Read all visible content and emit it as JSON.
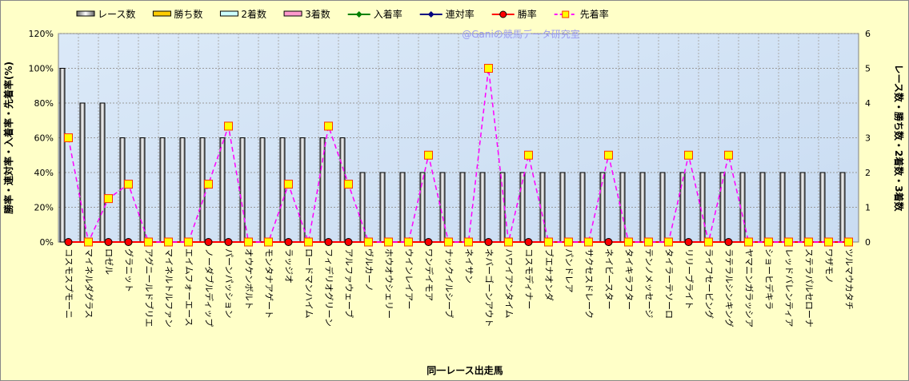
{
  "chart_data": {
    "type": "bar",
    "title": "",
    "watermark": "@Ganiの競馬データ研究室",
    "xlabel": "同一レース出走馬",
    "ylabel": "勝率・連対率・入着率・先着率(%)",
    "y2label": "レース数・勝ち数・2着数・3着数",
    "ylim": [
      0,
      120
    ],
    "y2lim": [
      0,
      6
    ],
    "yticks": [
      "0%",
      "20%",
      "40%",
      "60%",
      "80%",
      "100%",
      "120%"
    ],
    "y2ticks": [
      "0",
      "1",
      "2",
      "3",
      "4",
      "5",
      "6"
    ],
    "grid": true,
    "legend_position": "top",
    "legend": [
      "レース数",
      "勝ち数",
      "2着数",
      "3着数",
      "入着率",
      "連対率",
      "勝率",
      "先着率"
    ],
    "categories": [
      "コスモスプモーニ",
      "マイネルダグラス",
      "ロゼル",
      "グラニット",
      "アグニールドブリエ",
      "マイネルトルファン",
      "エイムフォーエース",
      "ノーダブルディップ",
      "パーンパッション",
      "オウケンボルト",
      "モンタナアゲート",
      "ラッジオ",
      "ロードマンハイム",
      "フィデリオグリーン",
      "アルファウェーブ",
      "ヴルカーノ",
      "ホウオウシェリー",
      "ウインレイアー",
      "ワンデイモア",
      "ナックイルシーブ",
      "ネイサン",
      "ネバーゴーンアウト",
      "ハワイアンタイム",
      "コスモディナー",
      "ブエナオンダ",
      "パンドレア",
      "サクセスドレーク",
      "ネイビースター",
      "タイキラフター",
      "テンノメッセージ",
      "タイラーテソーロ",
      "リリーブライト",
      "ライフセービング",
      "ラテラルシンキング",
      "ヤマニンガラッシア",
      "ショーヒデキラ",
      "レッドバレンティア",
      "ステラパルセローナ",
      "ワザモノ",
      "ツルマウカタチ"
    ],
    "series": [
      {
        "name": "レース数",
        "axis": "right",
        "type": "bar",
        "color": "#ffffff",
        "values": [
          5,
          4,
          4,
          3,
          3,
          3,
          3,
          3,
          3,
          3,
          3,
          3,
          3,
          3,
          3,
          2,
          2,
          2,
          2,
          2,
          2,
          2,
          2,
          2,
          2,
          2,
          2,
          2,
          2,
          2,
          2,
          2,
          2,
          2,
          2,
          2,
          2,
          2,
          2,
          2
        ]
      },
      {
        "name": "勝ち数",
        "axis": "right",
        "type": "bar",
        "color": "#ffcc00",
        "values": [
          0,
          0,
          0,
          0,
          0,
          0,
          0,
          0,
          0,
          0,
          0,
          0,
          0,
          0,
          0,
          0,
          0,
          0,
          0,
          0,
          0,
          0,
          0,
          0,
          0,
          0,
          0,
          0,
          0,
          0,
          0,
          0,
          0,
          0,
          0,
          0,
          0,
          0,
          0,
          0
        ]
      },
      {
        "name": "2着数",
        "axis": "right",
        "type": "bar",
        "color": "#ccffff",
        "values": [
          0,
          0,
          0,
          0,
          0,
          0,
          0,
          0,
          0,
          0,
          0,
          0,
          0,
          0,
          0,
          0,
          0,
          0,
          0,
          0,
          0,
          0,
          0,
          0,
          0,
          0,
          0,
          0,
          0,
          0,
          0,
          0,
          0,
          0,
          0,
          0,
          0,
          0,
          0,
          0
        ]
      },
      {
        "name": "3着数",
        "axis": "right",
        "type": "bar",
        "color": "#ff99cc",
        "values": [
          0,
          0,
          0,
          0,
          0,
          0,
          0,
          0,
          0,
          0,
          0,
          0,
          0,
          0,
          0,
          0,
          0,
          0,
          0,
          0,
          0,
          0,
          0,
          0,
          0,
          0,
          0,
          0,
          0,
          0,
          0,
          0,
          0,
          0,
          0,
          0,
          0,
          0,
          0,
          0
        ]
      },
      {
        "name": "入着率",
        "axis": "left",
        "type": "line",
        "color": "#008000",
        "values": [
          0,
          0,
          0,
          0,
          0,
          0,
          0,
          0,
          0,
          0,
          0,
          0,
          0,
          0,
          0,
          0,
          0,
          0,
          0,
          0,
          0,
          0,
          0,
          0,
          0,
          0,
          0,
          0,
          0,
          0,
          0,
          0,
          0,
          0,
          0,
          0,
          0,
          0,
          0,
          0
        ]
      },
      {
        "name": "連対率",
        "axis": "left",
        "type": "line",
        "color": "#000080",
        "values": [
          0,
          0,
          0,
          0,
          0,
          0,
          0,
          0,
          0,
          0,
          0,
          0,
          0,
          0,
          0,
          0,
          0,
          0,
          0,
          0,
          0,
          0,
          0,
          0,
          0,
          0,
          0,
          0,
          0,
          0,
          0,
          0,
          0,
          0,
          0,
          0,
          0,
          0,
          0,
          0
        ]
      },
      {
        "name": "勝率",
        "axis": "left",
        "type": "line",
        "color": "#ff0000",
        "values": [
          0,
          0,
          0,
          0,
          0,
          0,
          0,
          0,
          0,
          0,
          0,
          0,
          0,
          0,
          0,
          0,
          0,
          0,
          0,
          0,
          0,
          0,
          0,
          0,
          0,
          0,
          0,
          0,
          0,
          0,
          0,
          0,
          0,
          0,
          0,
          0,
          0,
          0,
          0,
          0
        ]
      },
      {
        "name": "先着率",
        "axis": "left",
        "type": "line",
        "color": "#ff00ff",
        "values": [
          60,
          0,
          25,
          33.3,
          0,
          0,
          0,
          33.3,
          66.7,
          0,
          0,
          33.3,
          0,
          66.7,
          33.3,
          0,
          0,
          0,
          50,
          0,
          0,
          100,
          0,
          50,
          0,
          0,
          0,
          50,
          0,
          0,
          0,
          50,
          0,
          50,
          0,
          0,
          0,
          0,
          0,
          0
        ]
      }
    ]
  }
}
